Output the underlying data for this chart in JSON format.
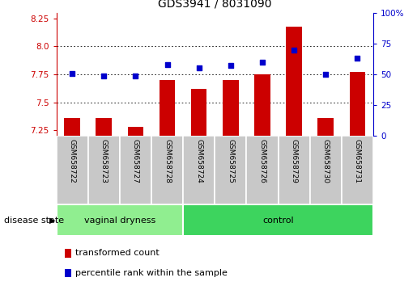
{
  "title": "GDS3941 / 8031090",
  "samples": [
    "GSM658722",
    "GSM658723",
    "GSM658727",
    "GSM658728",
    "GSM658724",
    "GSM658725",
    "GSM658726",
    "GSM658729",
    "GSM658730",
    "GSM658731"
  ],
  "bar_values": [
    7.36,
    7.36,
    7.28,
    7.7,
    7.62,
    7.7,
    7.75,
    8.18,
    7.36,
    7.77
  ],
  "dot_values": [
    51,
    49,
    49,
    58,
    55,
    57,
    60,
    70,
    50,
    63
  ],
  "ylim_left": [
    7.2,
    8.3
  ],
  "ylim_right": [
    0,
    100
  ],
  "yticks_left": [
    7.25,
    7.5,
    7.75,
    8.0,
    8.25
  ],
  "yticks_right": [
    0,
    25,
    50,
    75,
    100
  ],
  "bar_color": "#cc0000",
  "dot_color": "#0000cc",
  "bar_bottom": 7.2,
  "group1_label": "vaginal dryness",
  "group2_label": "control",
  "group1_count": 4,
  "group2_count": 6,
  "legend_bar_label": "transformed count",
  "legend_dot_label": "percentile rank within the sample",
  "disease_state_label": "disease state",
  "plot_bg_color": "#ffffff",
  "group1_bg": "#90ee90",
  "group2_bg": "#3dd45e",
  "grid_color": "#000000",
  "title_fontsize": 10,
  "tick_fontsize": 7.5,
  "label_fontsize": 8,
  "sample_label_fontsize": 6.5,
  "group_label_fontsize": 8,
  "legend_fontsize": 8
}
